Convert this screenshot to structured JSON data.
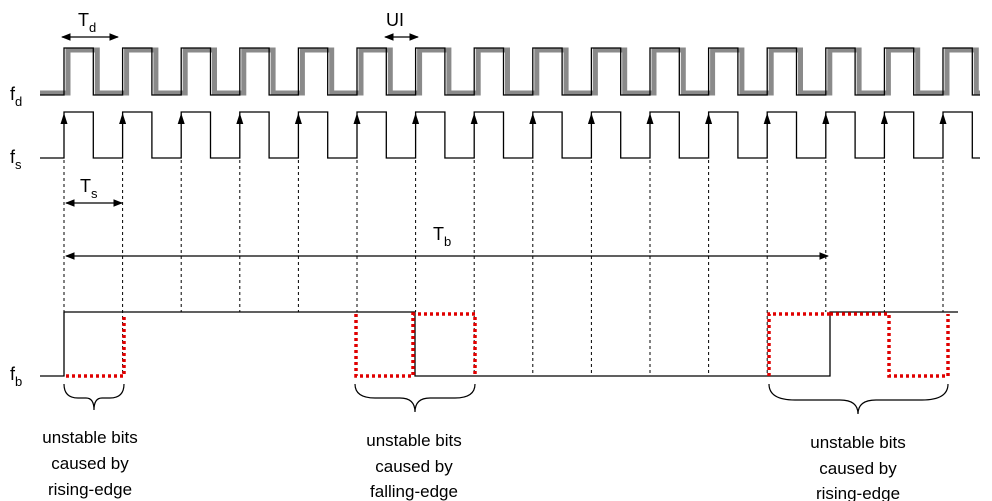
{
  "signals": {
    "fd": {
      "main": "f",
      "sub": "d"
    },
    "fs": {
      "main": "f",
      "sub": "s"
    },
    "fb": {
      "main": "f",
      "sub": "b"
    }
  },
  "intervals": {
    "Td": {
      "main": "T",
      "sub": "d"
    },
    "UI": "UI",
    "Ts": {
      "main": "T",
      "sub": "s"
    },
    "Tb": {
      "main": "T",
      "sub": "b"
    }
  },
  "annotations": [
    {
      "lines": [
        "unstable bits",
        "caused by",
        "rising-edge"
      ]
    },
    {
      "lines": [
        "unstable bits",
        "caused by",
        "falling-edge"
      ]
    },
    {
      "lines": [
        "unstable bits",
        "caused by",
        "rising-edge"
      ]
    }
  ]
}
